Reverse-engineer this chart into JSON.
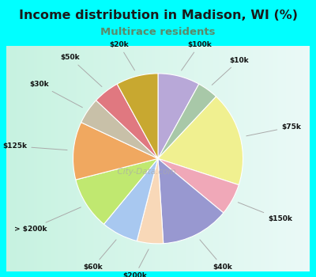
{
  "title": "Income distribution in Madison, WI (%)",
  "subtitle": "Multirace residents",
  "title_color": "#1a1a1a",
  "subtitle_color": "#5a8a6a",
  "background_color": "#00FFFF",
  "chart_bg_left": "#c8eedd",
  "chart_bg_right": "#e8f8f8",
  "labels": [
    "$100k",
    "$10k",
    "$75k",
    "$150k",
    "$40k",
    "$200k",
    "$60k",
    "> $200k",
    "$125k",
    "$30k",
    "$50k",
    "$20k"
  ],
  "values": [
    8,
    4,
    18,
    6,
    13,
    5,
    7,
    10,
    11,
    5,
    5,
    8
  ],
  "colors": [
    "#b8a8d8",
    "#a8c8a8",
    "#f0f090",
    "#f0a8b8",
    "#9898d0",
    "#f8d8b8",
    "#a8c8f0",
    "#c0e870",
    "#f0a860",
    "#c8c0a8",
    "#e07880",
    "#c8a830"
  ],
  "watermark": "City-Data.com"
}
